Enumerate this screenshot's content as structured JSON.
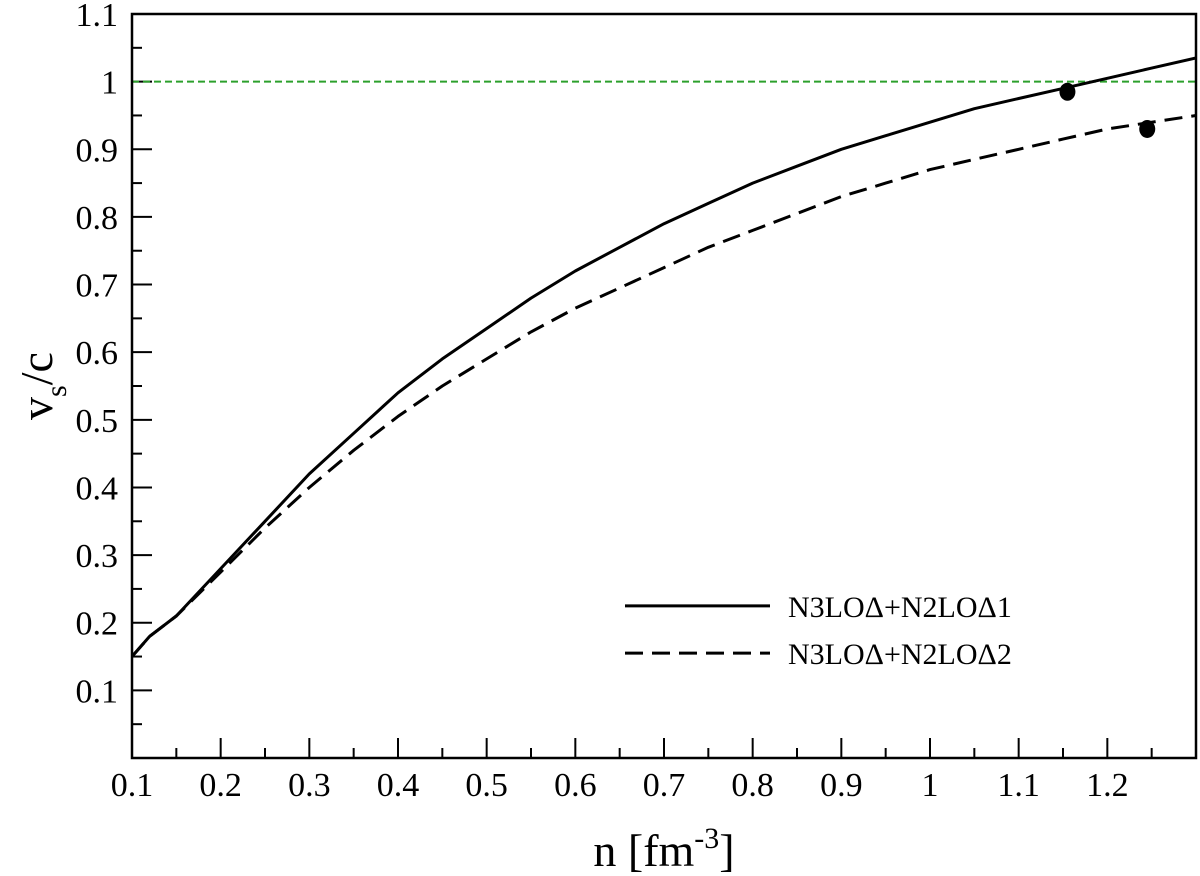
{
  "chart_data": {
    "type": "line",
    "xlabel": {
      "main": "n [fm",
      "sup": "-3",
      "tail": "]"
    },
    "ylabel": {
      "main": "v",
      "sub": "s",
      "tail": "/c"
    },
    "xlim": [
      0.1,
      1.3
    ],
    "ylim": [
      0.0,
      1.1
    ],
    "x_ticks": [
      {
        "value": 0.1,
        "label": "0.1"
      },
      {
        "value": 0.2,
        "label": "0.2"
      },
      {
        "value": 0.3,
        "label": "0.3"
      },
      {
        "value": 0.4,
        "label": "0.4"
      },
      {
        "value": 0.5,
        "label": "0.5"
      },
      {
        "value": 0.6,
        "label": "0.6"
      },
      {
        "value": 0.7,
        "label": "0.7"
      },
      {
        "value": 0.8,
        "label": "0.8"
      },
      {
        "value": 0.9,
        "label": "0.9"
      },
      {
        "value": 1.0,
        "label": "1"
      },
      {
        "value": 1.1,
        "label": "1.1"
      },
      {
        "value": 1.2,
        "label": "1.2"
      }
    ],
    "y_ticks": [
      {
        "value": 0.1,
        "label": "0.1"
      },
      {
        "value": 0.2,
        "label": "0.2"
      },
      {
        "value": 0.3,
        "label": "0.3"
      },
      {
        "value": 0.4,
        "label": "0.4"
      },
      {
        "value": 0.5,
        "label": "0.5"
      },
      {
        "value": 0.6,
        "label": "0.6"
      },
      {
        "value": 0.7,
        "label": "0.7"
      },
      {
        "value": 0.8,
        "label": "0.8"
      },
      {
        "value": 0.9,
        "label": "0.9"
      },
      {
        "value": 1.0,
        "label": "1"
      },
      {
        "value": 1.1,
        "label": "1.1"
      }
    ],
    "x_minor_step": 0.05,
    "y_minor_step": 0.05,
    "reference_line": {
      "y": 1.0,
      "color": "#2ca02c",
      "style": "dashed"
    },
    "series": [
      {
        "name": "N3LOΔ+N2LOΔ1",
        "style": "solid",
        "color": "#000000",
        "x": [
          0.1,
          0.12,
          0.15,
          0.2,
          0.25,
          0.3,
          0.35,
          0.4,
          0.45,
          0.5,
          0.55,
          0.6,
          0.65,
          0.7,
          0.75,
          0.8,
          0.85,
          0.9,
          0.95,
          1.0,
          1.05,
          1.1,
          1.15,
          1.2,
          1.25,
          1.3
        ],
        "y": [
          0.15,
          0.18,
          0.21,
          0.28,
          0.35,
          0.42,
          0.48,
          0.54,
          0.59,
          0.635,
          0.68,
          0.72,
          0.755,
          0.79,
          0.82,
          0.85,
          0.875,
          0.9,
          0.92,
          0.94,
          0.96,
          0.975,
          0.99,
          1.005,
          1.02,
          1.035
        ]
      },
      {
        "name": "N3LOΔ+N2LOΔ2",
        "style": "dashed",
        "color": "#000000",
        "x": [
          0.1,
          0.12,
          0.15,
          0.2,
          0.25,
          0.3,
          0.35,
          0.4,
          0.45,
          0.5,
          0.55,
          0.6,
          0.65,
          0.7,
          0.75,
          0.8,
          0.85,
          0.9,
          0.95,
          1.0,
          1.05,
          1.1,
          1.15,
          1.2,
          1.25,
          1.3
        ],
        "y": [
          0.15,
          0.18,
          0.21,
          0.275,
          0.34,
          0.4,
          0.455,
          0.505,
          0.55,
          0.59,
          0.63,
          0.665,
          0.695,
          0.725,
          0.755,
          0.78,
          0.805,
          0.83,
          0.85,
          0.87,
          0.885,
          0.9,
          0.915,
          0.93,
          0.94,
          0.95
        ]
      }
    ],
    "markers": [
      {
        "series": "N3LOΔ+N2LOΔ1",
        "x": 1.155,
        "y": 0.985
      },
      {
        "series": "N3LOΔ+N2LOΔ2",
        "x": 1.245,
        "y": 0.93
      }
    ],
    "legend": {
      "placement": "bottom-right",
      "entries": [
        "N3LOΔ+N2LOΔ1",
        "N3LOΔ+N2LOΔ2"
      ]
    },
    "grid": false
  }
}
